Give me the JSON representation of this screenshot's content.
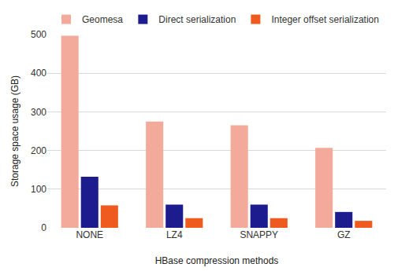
{
  "chart_data": {
    "type": "bar",
    "x_label": "HBase compression methods",
    "y_label": "Storage space usage (GB)",
    "categories": [
      "NONE",
      "LZ4",
      "SNAPPY",
      "GZ"
    ],
    "series": [
      {
        "name": "Geomesa",
        "color": "#f4aa9b",
        "values": [
          497,
          275,
          265,
          207
        ]
      },
      {
        "name": "Direct serialization",
        "color": "#1c1c8f",
        "values": [
          132,
          60,
          60,
          41
        ]
      },
      {
        "name": "Integer offset serialization",
        "color": "#ef5a1f",
        "values": [
          58,
          25,
          25,
          18
        ]
      }
    ],
    "ylim": [
      0,
      500
    ],
    "yticks": [
      0,
      100,
      200,
      300,
      400,
      500
    ],
    "grid": true,
    "legend": "top"
  }
}
